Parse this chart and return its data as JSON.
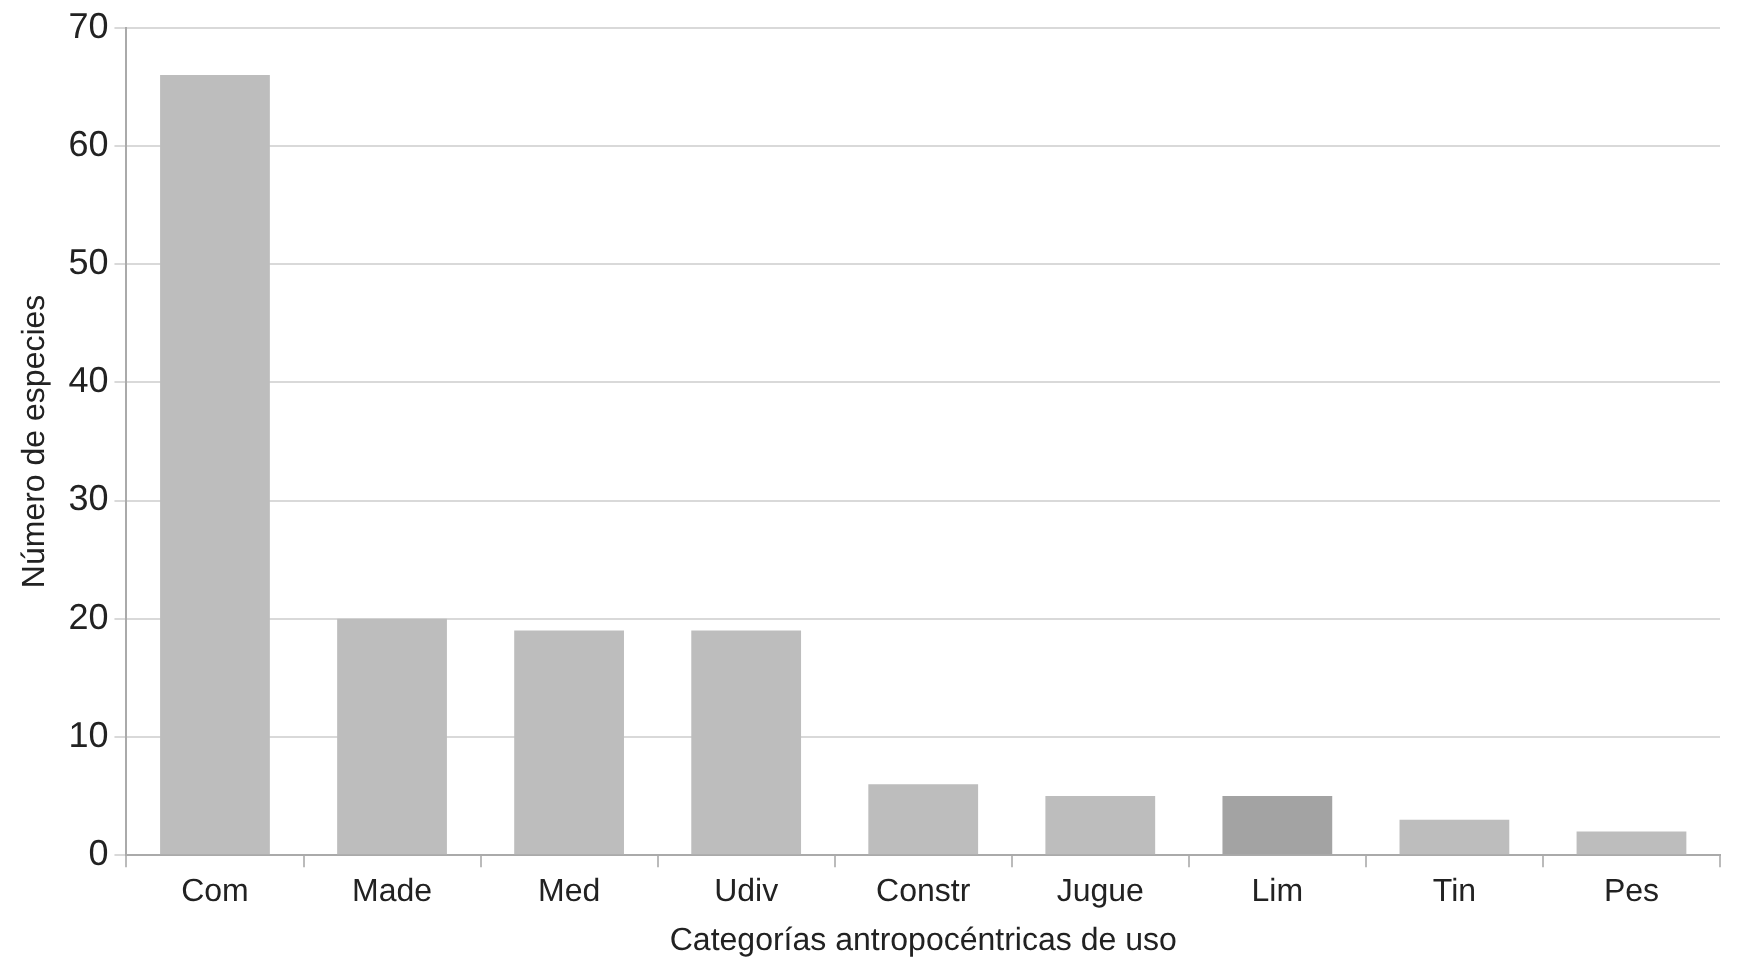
{
  "chart_data": {
    "type": "bar",
    "xlabel": "Categorías antropocéntricas de uso",
    "ylabel": "Número de especies",
    "categories": [
      "Com",
      "Made",
      "Med",
      "Udiv",
      "Constr",
      "Jugue",
      "Lim",
      "Tin",
      "Pes"
    ],
    "values": [
      66,
      20,
      19,
      19,
      6,
      5,
      5,
      3,
      2
    ],
    "colors": [
      "#bdbdbd",
      "#bdbdbd",
      "#bdbdbd",
      "#bdbdbd",
      "#bdbdbd",
      "#bdbdbd",
      "#a3a3a3",
      "#bdbdbd",
      "#bdbdbd"
    ],
    "ylim": [
      0,
      70
    ],
    "yticks": [
      0,
      10,
      20,
      30,
      40,
      50,
      60,
      70
    ],
    "grid": "y"
  }
}
